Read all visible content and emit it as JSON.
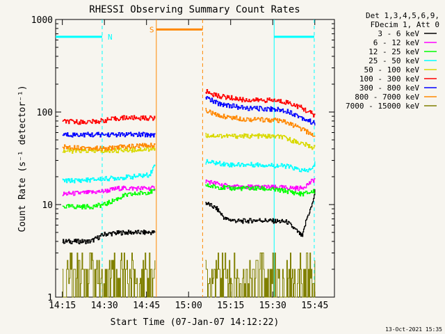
{
  "chart_data": {
    "type": "line",
    "title": "RHESSI Observing Summary Count Rates",
    "xlabel": "Start Time (07-Jan-07 14:12:22)",
    "ylabel": "Count Rate (s⁻¹ detector⁻¹)",
    "y_scale": "log",
    "ylim": [
      1,
      1000
    ],
    "xlim_minutes_after_14_15": [
      -2.4,
      97
    ],
    "x_ticks": [
      {
        "label": "14:15",
        "min": 0
      },
      {
        "label": "14:30",
        "min": 15
      },
      {
        "label": "14:45",
        "min": 30
      },
      {
        "label": "15:00",
        "min": 45
      },
      {
        "label": "15:15",
        "min": 60
      },
      {
        "label": "15:30",
        "min": 75
      },
      {
        "label": "15:45",
        "min": 90
      }
    ],
    "y_ticks": [
      {
        "label": "1",
        "value": 1
      },
      {
        "label": "10",
        "value": 10
      },
      {
        "label": "100",
        "value": 100
      },
      {
        "label": "1000",
        "value": 1000
      }
    ],
    "legend_header": [
      "Det 1,3,4,5,6,9,",
      "FDecim 1, Att 0"
    ],
    "legend_position": "right, outside plot",
    "gap_minutes": [
      33.5,
      50.0
    ],
    "series": [
      {
        "name": "3 - 6 keV",
        "color": "#000000",
        "seg1": [
          [
            0,
            4
          ],
          [
            10,
            4
          ],
          [
            15,
            4.8
          ],
          [
            22,
            5
          ],
          [
            33,
            5
          ]
        ],
        "seg2": [
          [
            51,
            10.5
          ],
          [
            55,
            9
          ],
          [
            58,
            7
          ],
          [
            63,
            6.6
          ],
          [
            70,
            6.8
          ],
          [
            80,
            6.5
          ],
          [
            84,
            5
          ],
          [
            85.5,
            4.5
          ],
          [
            87,
            7
          ],
          [
            89,
            10
          ],
          [
            90,
            14
          ]
        ]
      },
      {
        "name": "6 - 12 keV",
        "color": "#ff00ff",
        "seg1": [
          [
            0,
            13
          ],
          [
            10,
            13.5
          ],
          [
            15,
            14
          ],
          [
            20,
            15
          ],
          [
            33,
            15
          ]
        ],
        "seg2": [
          [
            51,
            18
          ],
          [
            60,
            15.5
          ],
          [
            70,
            15.5
          ],
          [
            80,
            15.2
          ],
          [
            85,
            15
          ],
          [
            88,
            17
          ],
          [
            90,
            19
          ]
        ]
      },
      {
        "name": "12 - 25 keV",
        "color": "#00ff00",
        "seg1": [
          [
            0,
            9.5
          ],
          [
            10,
            9.5
          ],
          [
            15,
            10
          ],
          [
            22,
            12.5
          ],
          [
            33,
            14
          ]
        ],
        "seg2": [
          [
            51,
            16
          ],
          [
            60,
            15
          ],
          [
            70,
            15
          ],
          [
            80,
            14
          ],
          [
            85,
            13
          ],
          [
            88,
            13.5
          ],
          [
            90,
            14
          ]
        ]
      },
      {
        "name": "25 - 50 keV",
        "color": "#00ffff",
        "seg1": [
          [
            0,
            18
          ],
          [
            10,
            18.5
          ],
          [
            15,
            19
          ],
          [
            25,
            20
          ],
          [
            31,
            21
          ],
          [
            33,
            27
          ]
        ],
        "seg2": [
          [
            51,
            29
          ],
          [
            60,
            27
          ],
          [
            70,
            27
          ],
          [
            80,
            26
          ],
          [
            86,
            23
          ],
          [
            89,
            24
          ],
          [
            90,
            28
          ]
        ]
      },
      {
        "name": "50 - 100 keV",
        "color": "#d9d900",
        "seg1": [
          [
            0,
            38
          ],
          [
            10,
            38
          ],
          [
            15,
            38
          ],
          [
            33,
            40
          ]
        ],
        "seg2": [
          [
            51,
            56
          ],
          [
            60,
            55
          ],
          [
            70,
            55
          ],
          [
            78,
            54
          ],
          [
            85,
            46
          ],
          [
            90,
            41
          ]
        ]
      },
      {
        "name": "100 - 300 keV",
        "color": "#ff0000",
        "seg1": [
          [
            0,
            79
          ],
          [
            8,
            78
          ],
          [
            12,
            79
          ],
          [
            17,
            83
          ],
          [
            22,
            87
          ],
          [
            30,
            86
          ],
          [
            33,
            86
          ]
        ],
        "seg2": [
          [
            51,
            168
          ],
          [
            55,
            150
          ],
          [
            65,
            135
          ],
          [
            75,
            134
          ],
          [
            80,
            128
          ],
          [
            85,
            112
          ],
          [
            90,
            92
          ]
        ]
      },
      {
        "name": "300 - 800 keV",
        "color": "#0000ff",
        "seg1": [
          [
            0,
            57
          ],
          [
            10,
            57
          ],
          [
            15,
            57
          ],
          [
            33,
            57
          ]
        ],
        "seg2": [
          [
            51,
            145
          ],
          [
            55,
            125
          ],
          [
            65,
            110
          ],
          [
            75,
            108
          ],
          [
            80,
            103
          ],
          [
            85,
            88
          ],
          [
            90,
            75
          ]
        ]
      },
      {
        "name": "800 - 7000 keV",
        "color": "#ff8800",
        "seg1": [
          [
            0,
            42
          ],
          [
            10,
            41
          ],
          [
            15,
            40
          ],
          [
            20,
            42
          ],
          [
            33,
            44
          ]
        ],
        "seg2": [
          [
            51,
            105
          ],
          [
            55,
            92
          ],
          [
            65,
            84
          ],
          [
            75,
            82
          ],
          [
            80,
            77
          ],
          [
            85,
            66
          ],
          [
            90,
            55
          ]
        ]
      },
      {
        "name": "7000 - 15000 keV",
        "color": "#808000",
        "seg1": [
          [
            0,
            1.6
          ],
          [
            33,
            1.6
          ]
        ],
        "seg2": [
          [
            51,
            1.7
          ],
          [
            63,
            1.8
          ],
          [
            70,
            1.6
          ],
          [
            78,
            2.2
          ],
          [
            85,
            1.7
          ],
          [
            90,
            1.8
          ]
        ]
      }
    ],
    "annotations": [
      {
        "letter": "N",
        "color": "#00ffff",
        "level": 650,
        "bars": [
          [
            -2.4,
            14.2
          ],
          [
            75.5,
            89.8
          ]
        ],
        "marker_lines": [
          14.2,
          75.5,
          89.8
        ]
      },
      {
        "letter": "S",
        "color": "#ff8800",
        "level": 780,
        "bars": [
          [
            33.5,
            50.0
          ]
        ],
        "marker_lines": [
          33.5,
          50.0
        ]
      }
    ]
  },
  "timestamp": "13-Oct-2021 15:35"
}
